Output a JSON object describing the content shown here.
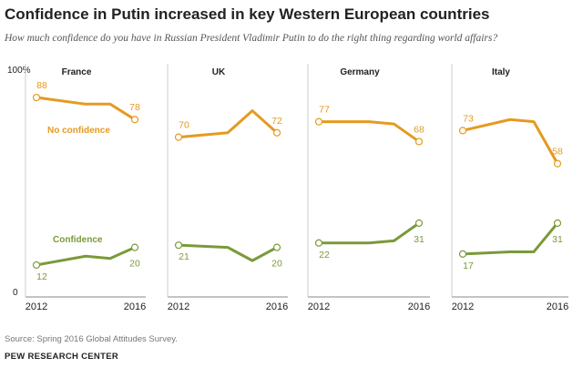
{
  "title": "Confidence in Putin increased in key Western European countries",
  "subtitle": "How much confidence do you have in Russian President Vladimir Putin to do the right thing regarding world affairs?",
  "source": "Source: Spring 2016 Global Attitudes Survey.",
  "brand": "PEW RESEARCH CENTER",
  "colors": {
    "no_confidence": "#E59A20",
    "confidence": "#7A9A3A",
    "axis": "#888888"
  },
  "chart_data": {
    "type": "line",
    "ylim": [
      0,
      100
    ],
    "y_tick_labels": [
      "100%",
      "0"
    ],
    "x_tick_labels": [
      "2012",
      "2016"
    ],
    "series_labels": {
      "no_confidence": "No confidence",
      "confidence": "Confidence"
    },
    "panels": [
      {
        "name": "France",
        "x": [
          2012,
          2014,
          2015,
          2016
        ],
        "no_confidence": [
          88,
          85,
          85,
          78
        ],
        "confidence": [
          12,
          16,
          15,
          20
        ]
      },
      {
        "name": "UK",
        "x": [
          2012,
          2014,
          2015,
          2016
        ],
        "no_confidence": [
          70,
          72,
          82,
          72
        ],
        "confidence": [
          21,
          20,
          14,
          20
        ]
      },
      {
        "name": "Germany",
        "x": [
          2012,
          2014,
          2015,
          2016
        ],
        "no_confidence": [
          77,
          77,
          76,
          68
        ],
        "confidence": [
          22,
          22,
          23,
          31
        ]
      },
      {
        "name": "Italy",
        "x": [
          2012,
          2014,
          2015,
          2016
        ],
        "no_confidence": [
          73,
          78,
          77,
          58
        ],
        "confidence": [
          17,
          18,
          18,
          31
        ]
      }
    ]
  }
}
